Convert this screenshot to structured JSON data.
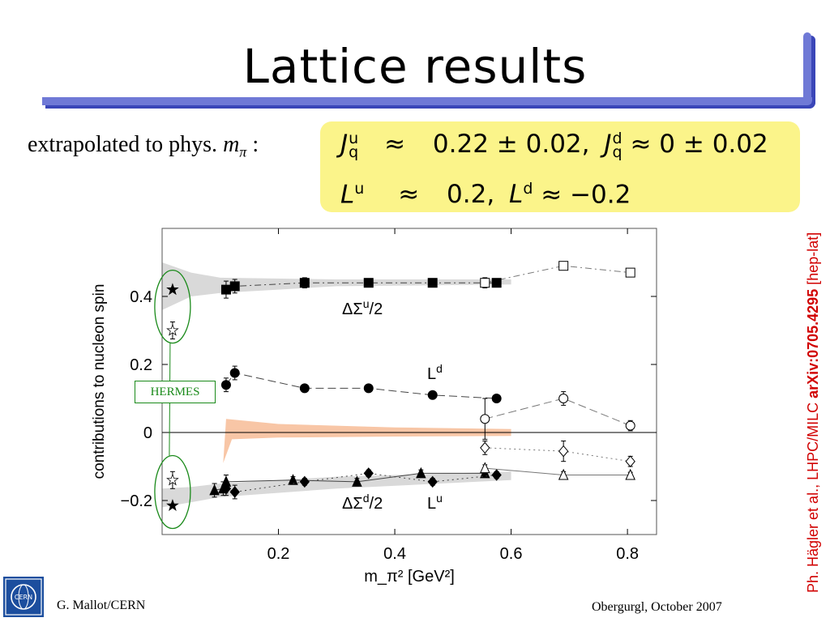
{
  "slide": {
    "title": "Lattice results",
    "subline_prefix": "extrapolated to phys. ",
    "subline_var": "m",
    "subline_sub": "π",
    "subline_suffix": " :",
    "formula": {
      "row1_lhs": "J",
      "row1_lhs_sup": "u",
      "row1_lhs_sub": "q",
      "row1_approx": "≈",
      "row1_value1": "0.22 ± 0.02,",
      "row1_rhs2_sym": "J",
      "row1_rhs2_sup": "d",
      "row1_rhs2_sub": "q",
      "row1_value2": "≈ 0 ± 0.02",
      "row2_lhs": "L",
      "row2_lhs_sup": "u",
      "row2_approx": "≈",
      "row2_value1": "0.2,",
      "row2_rhs2_sym": "L",
      "row2_rhs2_sup": "d",
      "row2_value2": "≈ −0.2"
    },
    "reference_prefix": "Ph. Hägler et al., LHPC/MILC ",
    "reference_bold": "arXiv:0705.4295",
    "reference_suffix": " [hep-lat]",
    "footer_left": "G. Mallot/CERN",
    "footer_right": "Obergurgl, October 2007",
    "logo_text": "CERN",
    "hermes_label": "HERMES"
  },
  "colors": {
    "title_bar": "#6f79d6",
    "title_bar_shadow": "#3a46b8",
    "formula_bg": "#fbf48a",
    "reference": "#d10000",
    "hermes": "#1a8a1a",
    "band_gray": "#d9d9d9",
    "band_orange": "#f8c6a6"
  },
  "chart_data": {
    "type": "scatter",
    "xlabel": "m_π² [GeV²]",
    "ylabel": "contributions to nucleon spin",
    "xlim": [
      0,
      0.85
    ],
    "ylim": [
      -0.3,
      0.6
    ],
    "x_ticks": [
      "0.2",
      "0.4",
      "0.6",
      "0.8"
    ],
    "y_ticks": [
      "−0.2",
      "0",
      "0.2",
      "0.4"
    ],
    "grid": false,
    "labels": {
      "dSigma_u": "ΔΣu/2",
      "dSigma_d": "ΔΣd/2",
      "L_d": "Ld",
      "L_u": "Lu"
    },
    "series": [
      {
        "name": "ΔΣu/2",
        "marker": "square",
        "x": [
          0.11,
          0.125,
          0.245,
          0.355,
          0.465,
          0.575
        ],
        "y": [
          0.42,
          0.43,
          0.44,
          0.44,
          0.44,
          0.44
        ],
        "err": [
          0.025,
          0.02,
          0.015,
          0.008,
          0.008,
          0.008
        ],
        "open_x": [
          0.555,
          0.69,
          0.805
        ],
        "open_y": [
          0.44,
          0.49,
          0.47
        ],
        "open_err": [
          0.015,
          0.01,
          0.008
        ]
      },
      {
        "name": "Ld",
        "marker": "circle",
        "x": [
          0.11,
          0.125,
          0.245,
          0.355,
          0.465,
          0.575
        ],
        "y": [
          0.14,
          0.175,
          0.13,
          0.13,
          0.11,
          0.1
        ],
        "err": [
          0.02,
          0.02,
          0.01,
          0.01,
          0.01,
          0.01
        ],
        "open_x": [
          0.555,
          0.69,
          0.805
        ],
        "open_y": [
          0.04,
          0.1,
          0.02
        ],
        "open_err": [
          0.06,
          0.02,
          0.015
        ]
      },
      {
        "name": "ΔΣd/2",
        "marker": "triangle",
        "x": [
          0.09,
          0.105,
          0.11,
          0.225,
          0.335,
          0.445,
          0.555
        ],
        "y": [
          -0.17,
          -0.165,
          -0.145,
          -0.14,
          -0.145,
          -0.12,
          -0.12
        ],
        "err": [
          0.02,
          0.02,
          0.02,
          0.01,
          0.01,
          0.01,
          0.01
        ],
        "open_x": [
          0.555,
          0.69,
          0.805
        ],
        "open_y": [
          -0.105,
          -0.125,
          -0.125
        ],
        "open_err": [
          0.01,
          0.01,
          0.008
        ]
      },
      {
        "name": "Lu",
        "marker": "diamond",
        "x": [
          0.11,
          0.125,
          0.245,
          0.355,
          0.465,
          0.575
        ],
        "y": [
          -0.165,
          -0.175,
          -0.145,
          -0.12,
          -0.145,
          -0.125
        ],
        "err": [
          0.02,
          0.02,
          0.01,
          0.01,
          0.01,
          0.01
        ],
        "open_x": [
          0.555,
          0.69,
          0.805
        ],
        "open_y": [
          -0.045,
          -0.055,
          -0.085
        ],
        "open_err": [
          0.02,
          0.03,
          0.015
        ]
      }
    ],
    "hermes_points": [
      {
        "marker": "filled-star",
        "x": 0.018,
        "y": 0.42
      },
      {
        "marker": "open-star",
        "x": 0.018,
        "y": 0.3
      },
      {
        "marker": "open-star",
        "x": 0.018,
        "y": -0.14
      },
      {
        "marker": "filled-star",
        "x": 0.018,
        "y": -0.215
      }
    ]
  }
}
